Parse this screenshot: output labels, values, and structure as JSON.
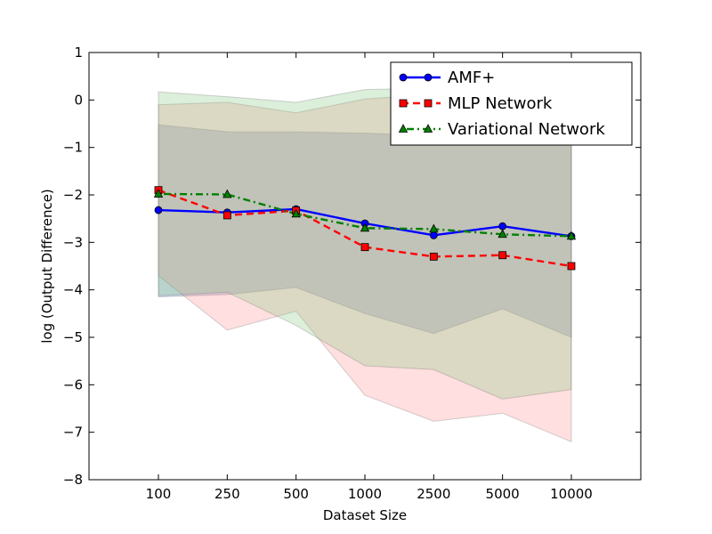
{
  "chart_data": {
    "type": "line",
    "title": "",
    "xlabel": "Dataset Size",
    "ylabel": "log (Output Difference)",
    "categories": [
      "100",
      "250",
      "500",
      "1000",
      "2500",
      "5000",
      "10000"
    ],
    "ylim": [
      -8,
      1
    ],
    "yticks": [
      1,
      0,
      -1,
      -2,
      -3,
      -4,
      -5,
      -6,
      -7,
      -8
    ],
    "ytick_labels": [
      "1",
      "0",
      "−1",
      "−2",
      "−3",
      "−4",
      "−5",
      "−6",
      "−7",
      "−8"
    ],
    "grid": false,
    "legend_position": "top-right",
    "series": [
      {
        "name": "AMF+",
        "color": "#0000ff",
        "marker": "circle",
        "linestyle": "solid",
        "values": [
          -2.32,
          -2.37,
          -2.3,
          -2.6,
          -2.85,
          -2.66,
          -2.87
        ],
        "band_upper": [
          -0.52,
          -0.67,
          -0.67,
          -0.7,
          -0.75,
          -0.78,
          -0.82
        ],
        "band_lower": [
          -4.15,
          -4.1,
          -3.95,
          -4.5,
          -4.92,
          -4.4,
          -5.0
        ],
        "band_color": "#4a72b8"
      },
      {
        "name": "MLP Network",
        "color": "#ff0000",
        "marker": "square",
        "linestyle": "dashed",
        "values": [
          -1.9,
          -2.43,
          -2.33,
          -3.1,
          -3.3,
          -3.27,
          -3.5
        ],
        "band_upper": [
          -0.1,
          -0.05,
          -0.27,
          0.02,
          0.12,
          0.1,
          0.05
        ],
        "band_lower": [
          -3.7,
          -4.85,
          -4.45,
          -6.22,
          -6.77,
          -6.6,
          -7.2
        ],
        "band_color": "#ff8b8b"
      },
      {
        "name": "Variational Network",
        "color": "#008000",
        "marker": "triangle",
        "linestyle": "dashdot",
        "values": [
          -1.98,
          -1.99,
          -2.4,
          -2.7,
          -2.72,
          -2.83,
          -2.87
        ],
        "band_upper": [
          0.17,
          0.07,
          -0.05,
          0.22,
          0.25,
          0.2,
          0.15
        ],
        "band_lower": [
          -4.12,
          -4.05,
          -4.75,
          -5.6,
          -5.68,
          -6.3,
          -6.1
        ],
        "band_color": "#7cc47c"
      }
    ]
  }
}
